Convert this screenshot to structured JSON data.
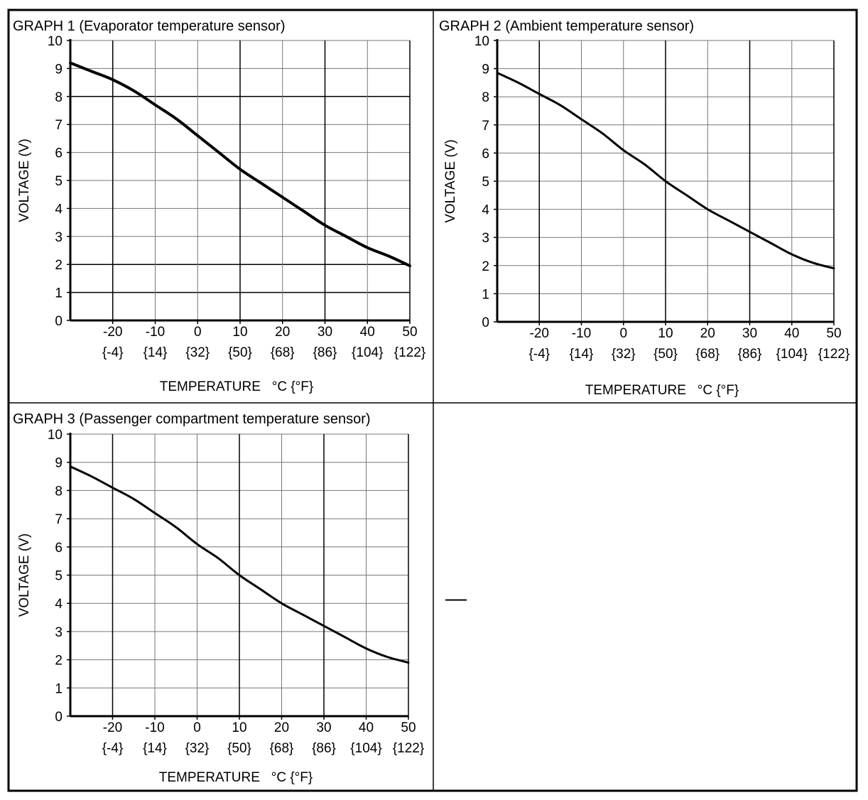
{
  "page": {
    "dash_label": "—"
  },
  "chart_data": [
    {
      "type": "line",
      "title": "GRAPH 1 (Evaporator temperature sensor)",
      "xlabel": "TEMPERATURE   °C {°F}",
      "ylabel": "VOLTAGE (V)",
      "xlim": [
        -30,
        50
      ],
      "ylim": [
        0,
        10
      ],
      "grid": true,
      "x_ticks": [
        -20,
        -10,
        0,
        10,
        20,
        30,
        40,
        50
      ],
      "x_tick_labels": [
        "-20",
        "-10",
        "0",
        "10",
        "20",
        "30",
        "40",
        "50"
      ],
      "x_tick_labels_f": [
        "{-4}",
        "{14}",
        "{32}",
        "{50}",
        "{68}",
        "{86}",
        "{104}",
        "{122}"
      ],
      "y_ticks": [
        0,
        1,
        2,
        3,
        4,
        5,
        6,
        7,
        8,
        9,
        10
      ],
      "y_tick_labels": [
        "0",
        "1",
        "2",
        "3",
        "4",
        "5",
        "6",
        "7",
        "8",
        "9",
        "10"
      ],
      "series": [
        {
          "x": [
            -30,
            -25,
            -20,
            -15,
            -10,
            -5,
            0,
            5,
            10,
            15,
            20,
            25,
            30,
            35,
            40,
            45,
            50
          ],
          "y": [
            9.2,
            8.9,
            8.6,
            8.2,
            7.7,
            7.2,
            6.6,
            6.0,
            5.4,
            4.9,
            4.4,
            3.9,
            3.4,
            3.0,
            2.6,
            2.3,
            1.95
          ]
        }
      ]
    },
    {
      "type": "line",
      "title": "GRAPH 2 (Ambient temperature sensor)",
      "xlabel": "TEMPERATURE   °C {°F}",
      "ylabel": "VOLTAGE (V)",
      "xlim": [
        -30,
        50
      ],
      "ylim": [
        0,
        10
      ],
      "grid": true,
      "x_ticks": [
        -20,
        -10,
        0,
        10,
        20,
        30,
        40,
        50
      ],
      "x_tick_labels": [
        "-20",
        "-10",
        "0",
        "10",
        "20",
        "30",
        "40",
        "50"
      ],
      "x_tick_labels_f": [
        "{-4}",
        "{14}",
        "{32}",
        "{50}",
        "{68}",
        "{86}",
        "{104}",
        "{122}"
      ],
      "y_ticks": [
        0,
        1,
        2,
        3,
        4,
        5,
        6,
        7,
        8,
        9,
        10
      ],
      "y_tick_labels": [
        "0",
        "1",
        "2",
        "3",
        "4",
        "5",
        "6",
        "7",
        "8",
        "9",
        "10"
      ],
      "series": [
        {
          "x": [
            -30,
            -25,
            -20,
            -15,
            -10,
            -5,
            0,
            5,
            10,
            15,
            20,
            25,
            30,
            35,
            40,
            45,
            50
          ],
          "y": [
            8.85,
            8.5,
            8.1,
            7.7,
            7.2,
            6.7,
            6.1,
            5.6,
            5.0,
            4.5,
            4.0,
            3.6,
            3.2,
            2.8,
            2.4,
            2.1,
            1.9
          ]
        }
      ]
    },
    {
      "type": "line",
      "title": "GRAPH 3 (Passenger compartment temperature sensor)",
      "xlabel": "TEMPERATURE   °C {°F}",
      "ylabel": "VOLTAGE (V)",
      "xlim": [
        -30,
        50
      ],
      "ylim": [
        0,
        10
      ],
      "grid": true,
      "x_ticks": [
        -20,
        -10,
        0,
        10,
        20,
        30,
        40,
        50
      ],
      "x_tick_labels": [
        "-20",
        "-10",
        "0",
        "10",
        "20",
        "30",
        "40",
        "50"
      ],
      "x_tick_labels_f": [
        "{-4}",
        "{14}",
        "{32}",
        "{50}",
        "{68}",
        "{86}",
        "{104}",
        "{122}"
      ],
      "y_ticks": [
        0,
        1,
        2,
        3,
        4,
        5,
        6,
        7,
        8,
        9,
        10
      ],
      "y_tick_labels": [
        "0",
        "1",
        "2",
        "3",
        "4",
        "5",
        "6",
        "7",
        "8",
        "9",
        "10"
      ],
      "series": [
        {
          "x": [
            -30,
            -25,
            -20,
            -15,
            -10,
            -5,
            0,
            5,
            10,
            15,
            20,
            25,
            30,
            35,
            40,
            45,
            50
          ],
          "y": [
            8.85,
            8.5,
            8.1,
            7.7,
            7.2,
            6.7,
            6.1,
            5.6,
            5.0,
            4.5,
            4.0,
            3.6,
            3.2,
            2.8,
            2.4,
            2.1,
            1.9
          ]
        }
      ]
    }
  ]
}
